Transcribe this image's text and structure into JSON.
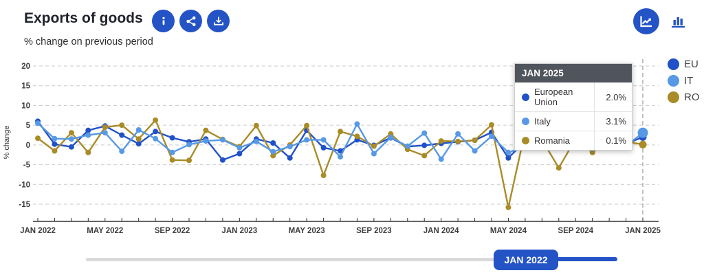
{
  "header": {
    "title": "Exports of goods",
    "subtitle": "% change on previous period",
    "actions": [
      "info",
      "share",
      "download"
    ]
  },
  "chart_type_controls": [
    "line-chart",
    "bar-chart"
  ],
  "colors": {
    "accent_blue": "#2453c6",
    "eu": "#2151c7",
    "it": "#5799e4",
    "ro": "#a98b28",
    "tooltip_header_bg": "#50555d"
  },
  "legend": {
    "items": [
      {
        "code": "EU",
        "label": "EU"
      },
      {
        "code": "IT",
        "label": "IT"
      },
      {
        "code": "RO",
        "label": "RO"
      }
    ]
  },
  "tooltip": {
    "title": "JAN 2025",
    "rows": [
      {
        "series": "EU",
        "label": "European Union",
        "value": "2.0%"
      },
      {
        "series": "IT",
        "label": "Italy",
        "value": "3.1%"
      },
      {
        "series": "RO",
        "label": "Romania",
        "value": "0.1%"
      }
    ]
  },
  "slider": {
    "handle_label": "JAN 2022"
  },
  "chart_data": {
    "type": "line",
    "title": "Exports of goods",
    "subtitle": "% change on previous period",
    "ylabel": "% change",
    "yticks": [
      20,
      15,
      10,
      5,
      0,
      -5,
      -10,
      -15
    ],
    "ylim": [
      -17.5,
      22
    ],
    "grid": "dashed-horizontal",
    "legend_position": "right",
    "hover_label": "JAN 2025",
    "x": [
      "JAN 2022",
      "FEB 2022",
      "MAR 2022",
      "APR 2022",
      "MAY 2022",
      "JUN 2022",
      "JUL 2022",
      "AUG 2022",
      "SEP 2022",
      "OCT 2022",
      "NOV 2022",
      "DEC 2022",
      "JAN 2023",
      "FEB 2023",
      "MAR 2023",
      "APR 2023",
      "MAY 2023",
      "JUN 2023",
      "JUL 2023",
      "AUG 2023",
      "SEP 2023",
      "OCT 2023",
      "NOV 2023",
      "DEC 2023",
      "JAN 2024",
      "FEB 2024",
      "MAR 2024",
      "APR 2024",
      "MAY 2024",
      "JUN 2024",
      "JUL 2024",
      "AUG 2024",
      "SEP 2024",
      "OCT 2024",
      "NOV 2024",
      "DEC 2024",
      "JAN 2025"
    ],
    "xtick_labels": [
      {
        "index": 0,
        "label": "JAN 2022"
      },
      {
        "index": 4,
        "label": "MAY 2022"
      },
      {
        "index": 8,
        "label": "SEP 2022"
      },
      {
        "index": 12,
        "label": "JAN 2023"
      },
      {
        "index": 16,
        "label": "MAY 2023"
      },
      {
        "index": 20,
        "label": "SEP 2023"
      },
      {
        "index": 24,
        "label": "JAN 2024"
      },
      {
        "index": 28,
        "label": "MAY 2024"
      },
      {
        "index": 32,
        "label": "SEP 2024"
      },
      {
        "index": 36,
        "label": "JAN 2025"
      }
    ],
    "series": [
      {
        "code": "EU",
        "name": "European Union",
        "color": "#2151c7",
        "values": [
          6.0,
          0.2,
          -0.5,
          3.7,
          4.8,
          2.5,
          0.3,
          3.4,
          1.8,
          0.8,
          1.5,
          -3.8,
          -2.2,
          1.5,
          0.5,
          -3.3,
          3.7,
          -0.7,
          -1.5,
          1.3,
          -0.1,
          1.8,
          -0.4,
          -0.1,
          0.4,
          0.8,
          1.2,
          3.2,
          -3.3,
          1.0,
          -0.1,
          0.9,
          0.8,
          -1.1,
          1.3,
          0.3,
          2.0
        ]
      },
      {
        "code": "IT",
        "name": "Italy",
        "color": "#5799e4",
        "values": [
          5.5,
          1.6,
          1.5,
          2.5,
          3.1,
          -1.6,
          3.8,
          1.6,
          -1.9,
          0.1,
          1.0,
          1.3,
          -0.7,
          0.9,
          -1.7,
          -0.4,
          1.3,
          1.3,
          -3.0,
          5.3,
          -2.2,
          1.9,
          -0.3,
          3.0,
          -3.6,
          2.8,
          -1.5,
          2.2,
          -1.9,
          -0.4,
          -0.1,
          0.8,
          0.9,
          -0.9,
          1.3,
          -0.3,
          3.1
        ]
      },
      {
        "code": "RO",
        "name": "Romania",
        "color": "#a98b28",
        "values": [
          1.7,
          -1.5,
          3.1,
          -1.9,
          4.5,
          5.0,
          1.5,
          6.3,
          -3.8,
          -3.9,
          3.7,
          1.4,
          -0.4,
          4.9,
          -2.7,
          0.0,
          4.9,
          -7.7,
          3.4,
          2.2,
          -0.3,
          2.8,
          -1.1,
          -2.7,
          1.0,
          0.9,
          1.2,
          5.1,
          -15.8,
          3.5,
          1.3,
          -5.8,
          1.5,
          -1.9,
          1.3,
          0.9,
          0.1
        ]
      }
    ]
  }
}
